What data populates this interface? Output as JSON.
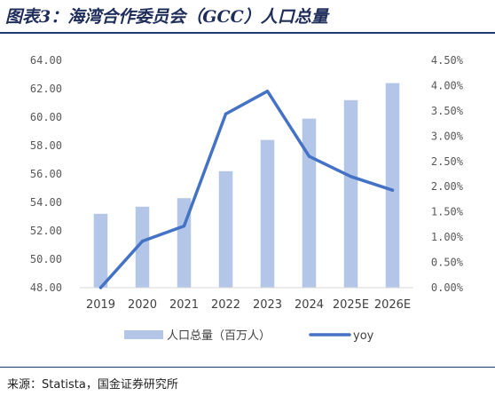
{
  "header": {
    "title": "图表3：海湾合作委员会（GCC）人口总量"
  },
  "footer": {
    "source": "来源：Statista，国金证券研究所"
  },
  "chart_data": {
    "type": "bar",
    "categories": [
      "2019",
      "2020",
      "2021",
      "2022",
      "2023",
      "2024",
      "2025E",
      "2026E"
    ],
    "series": [
      {
        "name": "人口总量（百万人）",
        "type": "bar",
        "axis": "left",
        "values": [
          53.2,
          53.7,
          54.3,
          56.2,
          58.4,
          59.9,
          61.2,
          62.4
        ],
        "color": "#b4c6e7"
      },
      {
        "name": "yoy",
        "type": "line",
        "axis": "right",
        "values": [
          0.0,
          0.92,
          1.22,
          3.44,
          3.89,
          2.6,
          2.2,
          1.93
        ],
        "color": "#4472c4"
      }
    ],
    "y_left": {
      "min": 48,
      "max": 64,
      "step": 2,
      "tick_labels": [
        "48.00",
        "50.00",
        "52.00",
        "54.00",
        "56.00",
        "58.00",
        "60.00",
        "62.00",
        "64.00"
      ]
    },
    "y_right": {
      "min": 0,
      "max": 4.5,
      "step": 0.5,
      "tick_labels": [
        "0.00%",
        "0.50%",
        "1.00%",
        "1.50%",
        "2.00%",
        "2.50%",
        "3.00%",
        "3.50%",
        "4.00%",
        "4.50%"
      ]
    },
    "legend": {
      "position": "bottom"
    },
    "grid": false
  }
}
